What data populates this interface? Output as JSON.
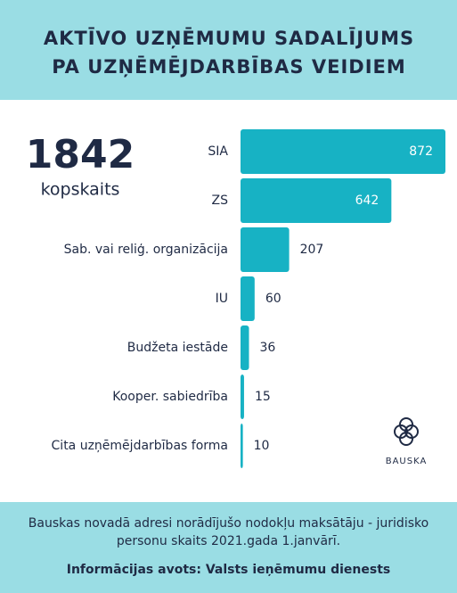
{
  "chart_data": {
    "type": "bar",
    "orientation": "horizontal",
    "title_lines": [
      "AKTĪVO UZŅĒMUMU SADALĪJUMS",
      "PA UZŅĒMĒJDARBĪBAS VEIDIEM"
    ],
    "total": 1842,
    "total_label": "kopskaits",
    "categories": [
      "SIA",
      "ZS",
      "Sab. vai reliģ. organizācija",
      "IU",
      "Budžeta iestāde",
      "Kooper. sabiedrība",
      "Cita uzņēmējdarbības forma"
    ],
    "values": [
      872,
      642,
      207,
      60,
      36,
      15,
      10
    ],
    "color": "#17b2c4",
    "logo_text": "BAUSKA",
    "footnote": "Bauskas novadā adresi norādījušo nodokļu maksātāju - juridisko personu skaits 2021.gada 1.janvārī.",
    "source": "Informācijas avots: Valsts ieņēmumu dienests"
  }
}
